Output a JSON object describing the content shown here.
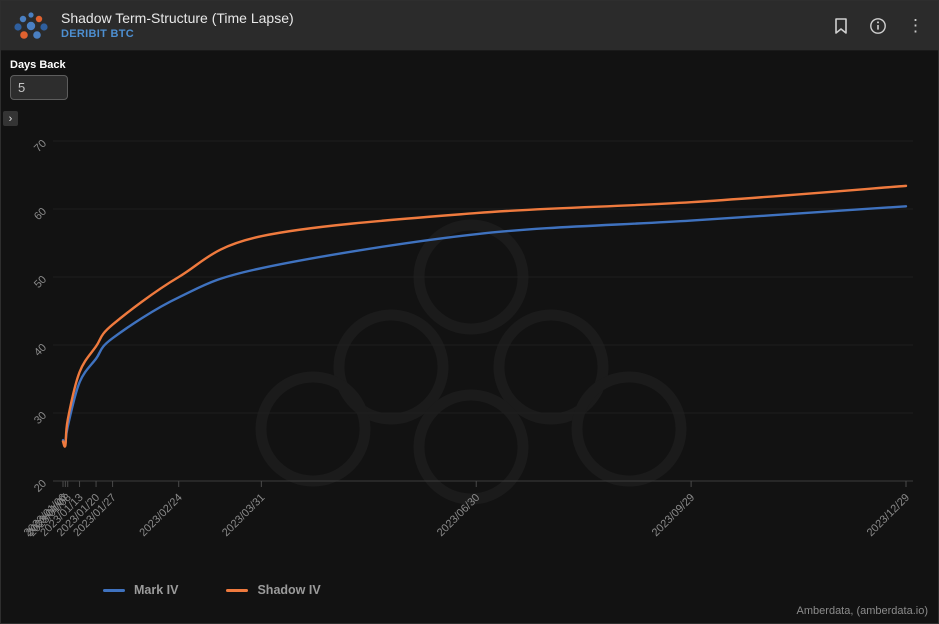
{
  "header": {
    "title": "Shadow Term-Structure (Time Lapse)",
    "subtitle": "DERIBIT BTC",
    "menu_glyph": "⋮"
  },
  "controls": {
    "days_back_label": "Days Back",
    "days_back_value": "5",
    "collapse_glyph": "›"
  },
  "credit": "Amberdata, (amberdata.io)",
  "colors": {
    "accent_blue": "#4d8fd1",
    "series_blue": "#3f72bf",
    "series_orange": "#ef7a3e",
    "header_bg": "#2b2b2b",
    "page_bg": "#121212"
  },
  "chart_data": {
    "type": "line",
    "title": "Shadow Term-Structure (Time Lapse)",
    "x_tick_labels": [
      "2023/01/06",
      "2023/01/07",
      "2023/01/08",
      "2023/01/13",
      "2023/01/20",
      "2023/01/27",
      "2023/02/24",
      "2023/03/31",
      "2023/06/30",
      "2023/09/29",
      "2023/12/29"
    ],
    "x_days": [
      0,
      1,
      2,
      7,
      14,
      21,
      49,
      84,
      175,
      266,
      357
    ],
    "series": [
      {
        "name": "Mark IV",
        "color": "#3f72bf",
        "values": [
          26.0,
          25.5,
          28.0,
          34.5,
          38.0,
          41.0,
          47.0,
          51.3,
          56.3,
          58.3,
          60.4
        ]
      },
      {
        "name": "Shadow IV",
        "color": "#ef7a3e",
        "values": [
          25.8,
          25.2,
          29.0,
          36.0,
          39.8,
          43.0,
          50.0,
          56.0,
          59.4,
          61.0,
          63.4
        ]
      }
    ],
    "ylim": [
      20,
      70
    ],
    "yticks": [
      20,
      30,
      40,
      50,
      60,
      70
    ],
    "grid": "horizontal",
    "legend_position": "bottom-left",
    "label_rotation_deg": -45
  }
}
